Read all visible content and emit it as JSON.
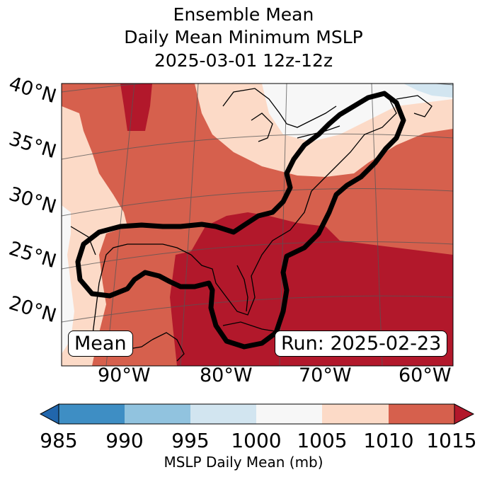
{
  "title": {
    "line1": "Ensemble Mean",
    "line2": "Daily Mean Minimum MSLP",
    "line3": "2025-03-01 12z-12z"
  },
  "map": {
    "lat_labels": [
      "40°N",
      "35°N",
      "30°N",
      "25°N",
      "20°N"
    ],
    "lon_labels": [
      "90°W",
      "80°W",
      "70°W",
      "60°W"
    ],
    "mean_box": "Mean",
    "run_box": "Run: 2025-02-23",
    "fill_colors": {
      "985": "#3e8ec4",
      "990": "#91c3df",
      "995": "#d2e5f0",
      "1000": "#f7f7f7",
      "1005": "#fcdac7",
      "1010": "#d6604d",
      "1015": "#b2182b"
    }
  },
  "colorbar": {
    "label": "MSLP Daily Mean (mb)",
    "ticks": [
      "985",
      "990",
      "995",
      "1000",
      "1005",
      "1010",
      "1015"
    ],
    "under_color": "#2166ac",
    "over_color": "#b2182b",
    "segment_colors": [
      "#3e8ec4",
      "#91c3df",
      "#d2e5f0",
      "#f7f7f7",
      "#fcdac7",
      "#d6604d"
    ]
  }
}
